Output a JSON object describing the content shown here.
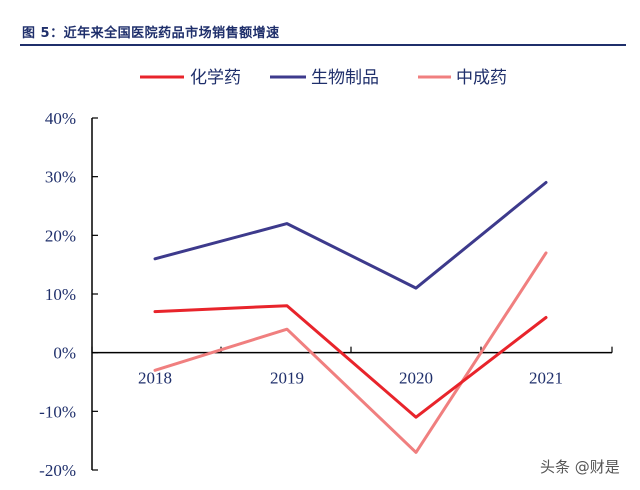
{
  "figure": {
    "title": "图 5：近年来全国医院药品市场销售额增速"
  },
  "watermark": "头条 @财是",
  "chart_data": {
    "type": "line",
    "categories": [
      "2018",
      "2019",
      "2020",
      "2021"
    ],
    "series": [
      {
        "name": "化学药",
        "values": [
          7,
          8,
          -11,
          6
        ],
        "color": "#e8242b"
      },
      {
        "name": "生物制品",
        "values": [
          16,
          22,
          11,
          29
        ],
        "color": "#3d3a8c"
      },
      {
        "name": "中成药",
        "values": [
          -3,
          4,
          -17,
          17
        ],
        "color": "#f07f7f"
      }
    ],
    "ylim": [
      -20,
      40
    ],
    "yticks": [
      -20,
      -10,
      0,
      10,
      20,
      30,
      40
    ],
    "ytick_labels": [
      "-20%",
      "-10%",
      "0%",
      "10%",
      "20%",
      "30%",
      "40%"
    ],
    "legend_position": "top",
    "grid": false
  }
}
